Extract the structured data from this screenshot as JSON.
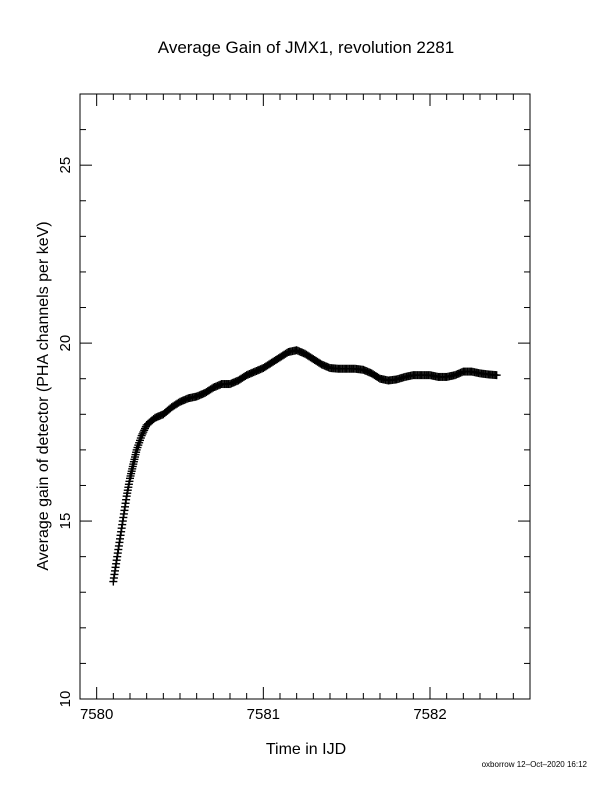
{
  "chart_data": {
    "type": "scatter",
    "title": "Average Gain of JMX1, revolution 2281",
    "xlabel": "Time in IJD",
    "ylabel": "Average gain of detector (PHA channels per keV)",
    "xlim": [
      7579.9,
      7582.6
    ],
    "ylim": [
      10,
      27
    ],
    "xticks": [
      7580,
      7581,
      7582
    ],
    "xtick_labels": [
      "7580",
      "7581",
      "7582"
    ],
    "yticks": [
      10,
      15,
      20,
      25
    ],
    "ytick_labels": [
      "10",
      "15",
      "20",
      "25"
    ],
    "x_minor_step": 0.1,
    "y_minor_step": 1,
    "marker": "plus",
    "grid": false,
    "series": [
      {
        "color": "#000000",
        "points": [
          [
            7580.1,
            13.3
          ],
          [
            7580.12,
            13.9
          ],
          [
            7580.14,
            14.5
          ],
          [
            7580.16,
            15.1
          ],
          [
            7580.18,
            15.7
          ],
          [
            7580.2,
            16.2
          ],
          [
            7580.22,
            16.6
          ],
          [
            7580.24,
            17.0
          ],
          [
            7580.27,
            17.4
          ],
          [
            7580.3,
            17.7
          ],
          [
            7580.35,
            17.9
          ],
          [
            7580.4,
            18.0
          ],
          [
            7580.45,
            18.2
          ],
          [
            7580.5,
            18.35
          ],
          [
            7580.55,
            18.45
          ],
          [
            7580.6,
            18.5
          ],
          [
            7580.65,
            18.6
          ],
          [
            7580.7,
            18.75
          ],
          [
            7580.75,
            18.85
          ],
          [
            7580.8,
            18.85
          ],
          [
            7580.85,
            18.95
          ],
          [
            7580.9,
            19.1
          ],
          [
            7580.95,
            19.2
          ],
          [
            7581.0,
            19.3
          ],
          [
            7581.05,
            19.45
          ],
          [
            7581.1,
            19.6
          ],
          [
            7581.15,
            19.75
          ],
          [
            7581.2,
            19.8
          ],
          [
            7581.25,
            19.7
          ],
          [
            7581.3,
            19.55
          ],
          [
            7581.35,
            19.4
          ],
          [
            7581.4,
            19.3
          ],
          [
            7581.45,
            19.28
          ],
          [
            7581.5,
            19.28
          ],
          [
            7581.55,
            19.28
          ],
          [
            7581.6,
            19.25
          ],
          [
            7581.65,
            19.15
          ],
          [
            7581.7,
            19.0
          ],
          [
            7581.75,
            18.95
          ],
          [
            7581.8,
            18.98
          ],
          [
            7581.85,
            19.05
          ],
          [
            7581.9,
            19.1
          ],
          [
            7581.95,
            19.1
          ],
          [
            7582.0,
            19.1
          ],
          [
            7582.05,
            19.05
          ],
          [
            7582.1,
            19.05
          ],
          [
            7582.15,
            19.1
          ],
          [
            7582.2,
            19.2
          ],
          [
            7582.25,
            19.2
          ],
          [
            7582.3,
            19.15
          ],
          [
            7582.35,
            19.12
          ],
          [
            7582.4,
            19.1
          ]
        ]
      }
    ],
    "footer": "oxborrow 12–Oct–2020 16:12"
  }
}
